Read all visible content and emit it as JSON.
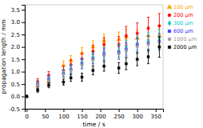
{
  "chart_data": {
    "type": "scatter",
    "xlabel": "time / s",
    "ylabel": "propagation length / mm",
    "x": [
      0,
      30,
      60,
      100,
      120,
      150,
      180,
      210,
      250,
      270,
      300,
      330,
      360
    ],
    "series": [
      {
        "name": "100 μm",
        "color": "#FFA500",
        "marker": "triangle",
        "values": [
          0.0,
          0.43,
          0.6,
          1.25,
          1.45,
          1.75,
          2.0,
          2.25,
          2.3,
          2.4,
          2.35,
          2.45,
          2.45
        ],
        "errors": [
          0.02,
          0.12,
          0.15,
          0.18,
          0.2,
          0.22,
          0.25,
          0.28,
          0.3,
          0.32,
          0.32,
          0.35,
          0.38
        ]
      },
      {
        "name": "200 μm",
        "color": "#FF0000",
        "marker": "circle",
        "values": [
          0.0,
          0.6,
          0.85,
          1.05,
          1.28,
          1.52,
          1.82,
          2.1,
          2.1,
          2.45,
          2.55,
          2.75,
          2.85
        ],
        "errors": [
          0.02,
          0.12,
          0.15,
          0.18,
          0.2,
          0.22,
          0.25,
          0.28,
          0.32,
          0.38,
          0.42,
          0.45,
          0.5
        ]
      },
      {
        "name": "300 μm",
        "color": "#00CCCC",
        "marker": "diamond",
        "values": [
          0.0,
          0.5,
          0.72,
          0.95,
          1.12,
          1.38,
          1.58,
          1.78,
          1.85,
          2.0,
          2.15,
          2.25,
          2.35
        ],
        "errors": [
          0.02,
          0.1,
          0.12,
          0.14,
          0.16,
          0.18,
          0.2,
          0.22,
          0.25,
          0.27,
          0.3,
          0.32,
          0.35
        ]
      },
      {
        "name": "600 μm",
        "color": "#3333FF",
        "marker": "square",
        "values": [
          0.0,
          0.48,
          0.68,
          0.92,
          1.08,
          1.32,
          1.52,
          1.7,
          1.78,
          1.9,
          2.08,
          2.15,
          2.22
        ],
        "errors": [
          0.02,
          0.1,
          0.12,
          0.14,
          0.16,
          0.18,
          0.2,
          0.22,
          0.25,
          0.27,
          0.28,
          0.3,
          0.32
        ]
      },
      {
        "name": "1000 μm",
        "color": "#999999",
        "marker": "circle",
        "values": [
          0.0,
          0.46,
          0.65,
          0.9,
          1.05,
          1.28,
          1.48,
          1.65,
          1.72,
          1.85,
          2.02,
          2.1,
          2.18
        ],
        "errors": [
          0.02,
          0.1,
          0.12,
          0.14,
          0.16,
          0.18,
          0.2,
          0.22,
          0.24,
          0.26,
          0.28,
          0.3,
          0.32
        ]
      },
      {
        "name": "2000 μm",
        "color": "#000000",
        "marker": "square",
        "values": [
          0.0,
          0.25,
          0.45,
          0.58,
          0.75,
          0.78,
          1.05,
          1.22,
          1.15,
          1.32,
          1.5,
          1.6,
          2.0
        ],
        "errors": [
          0.02,
          0.08,
          0.1,
          0.12,
          0.14,
          0.16,
          0.18,
          0.2,
          0.22,
          0.24,
          0.26,
          0.28,
          0.42
        ]
      }
    ],
    "xlim": [
      -5,
      370
    ],
    "xticks": [
      0,
      50,
      100,
      150,
      200,
      250,
      300,
      350
    ],
    "ylim": [
      -0.5,
      3.7
    ],
    "yticks": [
      -0.5,
      {
        "value": 0,
        "label": "0.0"
      },
      0.5,
      {
        "value": 1,
        "label": "1.0"
      },
      1.5,
      {
        "value": 2,
        "label": "2.0"
      },
      2.5,
      {
        "value": 3,
        "label": "3.0"
      },
      3.5
    ],
    "legend": "right"
  }
}
